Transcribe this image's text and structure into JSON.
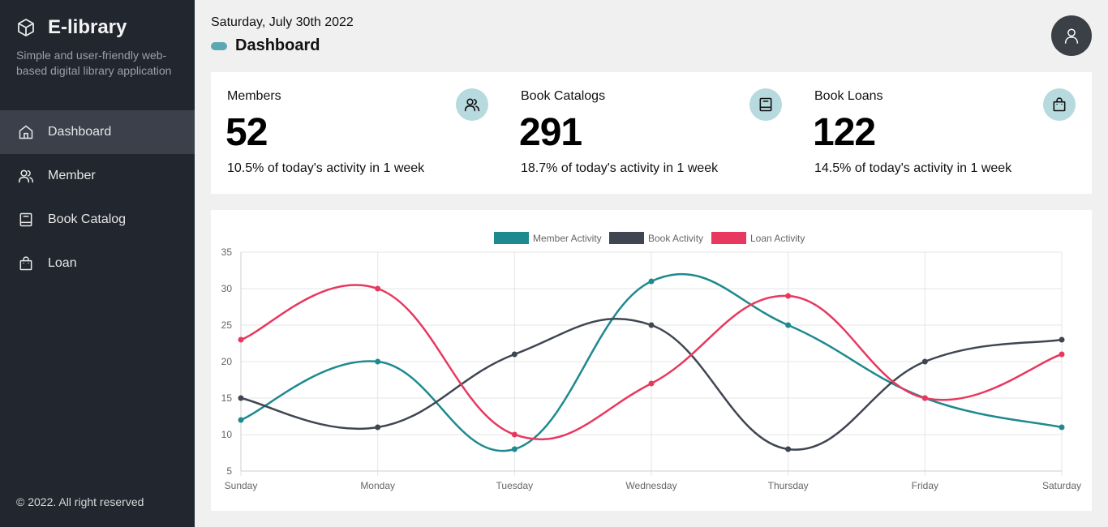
{
  "sidebar": {
    "brand_title": "E-library",
    "brand_subtitle": "Simple and user-friendly web-based digital library application",
    "items": [
      {
        "label": "Dashboard",
        "icon": "home-icon",
        "active": true
      },
      {
        "label": "Member",
        "icon": "users-icon",
        "active": false
      },
      {
        "label": "Book Catalog",
        "icon": "book-icon",
        "active": false
      },
      {
        "label": "Loan",
        "icon": "bag-icon",
        "active": false
      }
    ],
    "footer": "© 2022. All right reserved"
  },
  "header": {
    "date": "Saturday, July 30th 2022",
    "title": "Dashboard"
  },
  "stats": [
    {
      "label": "Members",
      "value": "52",
      "note": "10.5% of today's activity in 1 week",
      "icon": "users-icon"
    },
    {
      "label": "Book Catalogs",
      "value": "291",
      "note": "18.7% of today's activity in 1 week",
      "icon": "book-icon"
    },
    {
      "label": "Book Loans",
      "value": "122",
      "note": "14.5% of today's activity in 1 week",
      "icon": "bag-icon"
    }
  ],
  "colors": {
    "sidebar_bg": "#22262f",
    "accent": "#5ba8b3",
    "icon_bg": "#b7dade",
    "member": "#1e8a8f",
    "book": "#3f4652",
    "loan": "#e8385f"
  },
  "chart_data": {
    "type": "line",
    "categories": [
      "Sunday",
      "Monday",
      "Tuesday",
      "Wednesday",
      "Thursday",
      "Friday",
      "Saturday"
    ],
    "series": [
      {
        "name": "Member Activity",
        "color": "#1e8a8f",
        "values": [
          12,
          20,
          8,
          31,
          25,
          15,
          11
        ]
      },
      {
        "name": "Book Activity",
        "color": "#3f4652",
        "values": [
          15,
          11,
          21,
          25,
          8,
          20,
          23
        ]
      },
      {
        "name": "Loan Activity",
        "color": "#e8385f",
        "values": [
          23,
          30,
          10,
          17,
          29,
          15,
          21
        ]
      }
    ],
    "ylim": [
      5,
      35
    ],
    "yticks": [
      5,
      10,
      15,
      20,
      25,
      30,
      35
    ],
    "grid": true,
    "legend": "top-center",
    "curve": "smooth"
  }
}
